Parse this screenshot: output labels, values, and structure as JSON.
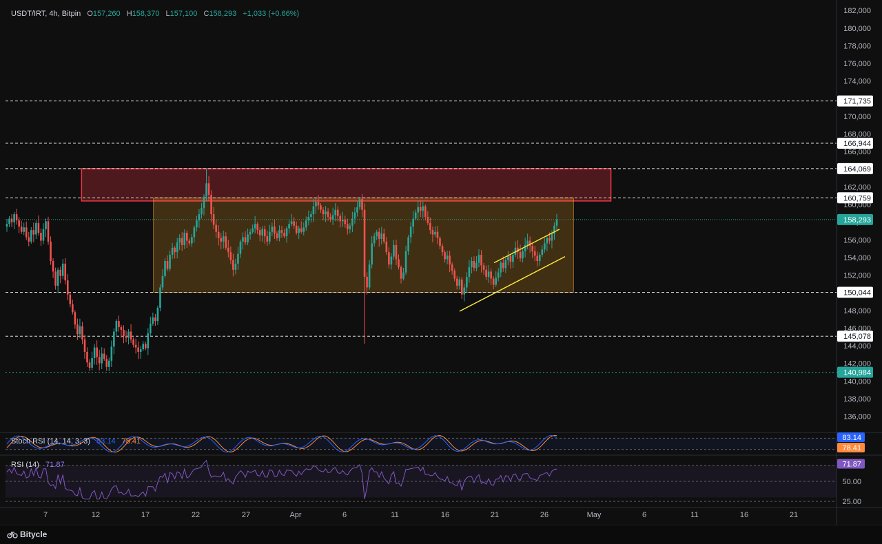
{
  "legend": {
    "symbol": "USDT/IRT, 4h, Bitpin",
    "open_k": "O",
    "open": "157,260",
    "high_k": "H",
    "high": "158,370",
    "low_k": "L",
    "low": "157,100",
    "close_k": "C",
    "close": "158,293",
    "change": "+1,033 (+0.66%)"
  },
  "indicators": {
    "stoch": {
      "name": "Stoch RSI (14, 14, 3, 3)",
      "k": "83.14",
      "d": "78.41"
    },
    "rsi": {
      "name": "RSI (14)",
      "value": "71.87"
    }
  },
  "brand": {
    "name": "Bitycle"
  },
  "colors": {
    "up": "#26a69a",
    "down": "#ef5350",
    "zone_red": "#f23645",
    "zone_orange": "#f5a623",
    "channel": "#ffeb3b",
    "stoch_k": "#2962ff",
    "stoch_d": "#ff8a3d",
    "rsi": "#7e57c2"
  },
  "chart_data": {
    "type": "candlestick",
    "timeframe": "4h",
    "y_ticks": [
      136000,
      138000,
      140000,
      142000,
      144000,
      146000,
      148000,
      150000,
      152000,
      154000,
      156000,
      158000,
      160000,
      162000,
      164000,
      166000,
      168000,
      170000,
      172000,
      174000,
      176000,
      178000,
      180000,
      182000
    ],
    "ylim": [
      134400,
      182400
    ],
    "x_ticks": [
      "7",
      "12",
      "17",
      "22",
      "27",
      "Apr",
      "6",
      "11",
      "16",
      "21",
      "26",
      "May",
      "6",
      "11",
      "16",
      "21"
    ],
    "levels": [
      {
        "value": 171735,
        "label": "171,735",
        "style": "dashed"
      },
      {
        "value": 166944,
        "label": "166,944",
        "style": "dashed"
      },
      {
        "value": 164069,
        "label": "164,069",
        "style": "dashed"
      },
      {
        "value": 160759,
        "label": "160,759",
        "style": "dashed"
      },
      {
        "value": 150044,
        "label": "150,044",
        "style": "dashed"
      },
      {
        "value": 145078,
        "label": "145,078",
        "style": "dashed"
      },
      {
        "value": 140984,
        "label": "140,984",
        "style": "dotted-green"
      }
    ],
    "last_price": {
      "value": 158293,
      "label": "158,293"
    },
    "zones": [
      {
        "name": "resistance-zone",
        "top": 164069,
        "bottom": 160400,
        "from": "Mar 11",
        "to": "May 2",
        "color": "red"
      },
      {
        "name": "range-zone",
        "top": 160759,
        "bottom": 150044,
        "from": "Mar 18",
        "to": "Apr 30",
        "color": "orange"
      }
    ],
    "closes": [
      157800,
      158400,
      158000,
      158900,
      158200,
      157500,
      156900,
      157400,
      156300,
      155800,
      157100,
      156600,
      157900,
      156800,
      155900,
      157200,
      158100,
      155800,
      153600,
      152400,
      150800,
      152600,
      151900,
      153300,
      151400,
      149800,
      148700,
      147800,
      146400,
      145300,
      146200,
      144700,
      143300,
      142100,
      141500,
      142600,
      143800,
      142700,
      142000,
      143100,
      142500,
      141600,
      142300,
      143900,
      145600,
      146800,
      146100,
      145800,
      145100,
      144900,
      145600,
      144700,
      144100,
      143800,
      143300,
      143600,
      144200,
      143700,
      145400,
      146500,
      147200,
      146800,
      148300,
      150600,
      151900,
      153600,
      152700,
      154300,
      155100,
      154600,
      155700,
      156200,
      155400,
      156800,
      155900,
      155600,
      156300,
      157400,
      158200,
      158900,
      159600,
      160900,
      162400,
      161100,
      158900,
      157700,
      156900,
      156200,
      155800,
      156400,
      155100,
      154600,
      153700,
      152600,
      153300,
      154400,
      155800,
      156300,
      155700,
      156600,
      156900,
      157300,
      157800,
      157100,
      156500,
      157200,
      156400,
      155800,
      156900,
      157500,
      156700,
      156200,
      157100,
      156800,
      156400,
      157300,
      157800,
      158100,
      157600,
      156800,
      157300,
      156900,
      157400,
      158200,
      158600,
      158900,
      159800,
      160300,
      159900,
      159400,
      158900,
      159200,
      158600,
      158300,
      158800,
      159400,
      158700,
      158100,
      158300,
      157800,
      157200,
      157600,
      158400,
      159100,
      159700,
      160600,
      159400,
      151800,
      150600,
      153200,
      155600,
      156400,
      156900,
      156100,
      156700,
      155800,
      154600,
      153200,
      154100,
      155400,
      153800,
      152900,
      151600,
      152300,
      154700,
      156300,
      157500,
      158400,
      159100,
      159700,
      159300,
      159800,
      158600,
      157900,
      157100,
      156600,
      156900,
      156200,
      155300,
      154600,
      153800,
      154200,
      153200,
      152500,
      151600,
      150800,
      151500,
      149800,
      150600,
      151800,
      152900,
      153600,
      152800,
      153400,
      154300,
      153100,
      152600,
      151800,
      152400,
      151600,
      150900,
      151700,
      152300,
      153400,
      152800,
      153700,
      154200,
      153500,
      154300,
      155100,
      154600,
      153900,
      154700,
      155400,
      155900,
      155300,
      154700,
      154200,
      153600,
      154300,
      154900,
      155600,
      156200,
      155900,
      156700,
      157600,
      158293
    ],
    "opens_shift": 1,
    "x_range_visible": [
      "Mar 5",
      "May 24"
    ],
    "stoch_rsi": {
      "k": 83.14,
      "d": 78.41,
      "range": [
        0,
        100
      ]
    },
    "rsi": {
      "value": 71.87,
      "levels": [
        25.0,
        50.0,
        70.0
      ],
      "labels": [
        "50.00",
        "25.00"
      ]
    }
  }
}
